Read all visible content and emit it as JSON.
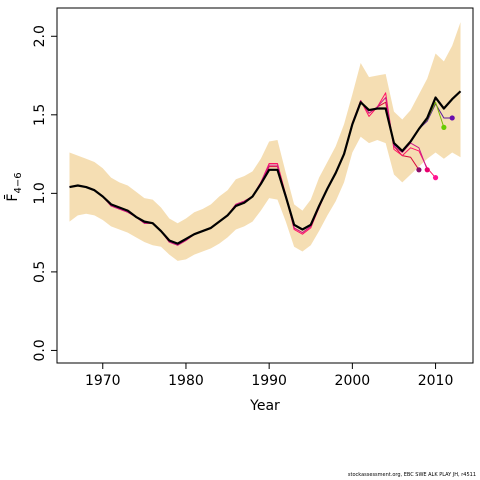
{
  "chart_data": {
    "type": "line",
    "xlabel": "Year",
    "ylabel": "F̄",
    "ylabel_subscript": "4−6",
    "xlim": [
      1964.5,
      2014.5
    ],
    "ylim": [
      -0.08,
      2.18
    ],
    "x_ticks": [
      1970,
      1980,
      1990,
      2000,
      2010
    ],
    "y_ticks": [
      "0.0",
      "0.5",
      "1.0",
      "1.5",
      "2.0"
    ],
    "band": {
      "color": "#f5deb3",
      "x": [
        1966,
        1967,
        1968,
        1969,
        1970,
        1971,
        1972,
        1973,
        1974,
        1975,
        1976,
        1977,
        1978,
        1979,
        1980,
        1981,
        1982,
        1983,
        1984,
        1985,
        1986,
        1987,
        1988,
        1989,
        1990,
        1991,
        1992,
        1993,
        1994,
        1995,
        1996,
        1997,
        1998,
        1999,
        2000,
        2001,
        2002,
        2003,
        2004,
        2005,
        2006,
        2007,
        2008,
        2009,
        2010,
        2011,
        2012,
        2013
      ],
      "lower": [
        0.82,
        0.86,
        0.87,
        0.86,
        0.83,
        0.79,
        0.77,
        0.75,
        0.72,
        0.69,
        0.67,
        0.66,
        0.61,
        0.57,
        0.58,
        0.61,
        0.63,
        0.65,
        0.68,
        0.72,
        0.77,
        0.79,
        0.82,
        0.89,
        0.97,
        0.96,
        0.82,
        0.66,
        0.63,
        0.67,
        0.76,
        0.86,
        0.95,
        1.07,
        1.26,
        1.36,
        1.32,
        1.34,
        1.32,
        1.12,
        1.07,
        1.12,
        1.17,
        1.22,
        1.26,
        1.22,
        1.26,
        1.23
      ],
      "upper": [
        1.26,
        1.24,
        1.22,
        1.2,
        1.16,
        1.1,
        1.07,
        1.05,
        1.01,
        0.97,
        0.96,
        0.91,
        0.84,
        0.81,
        0.84,
        0.88,
        0.9,
        0.93,
        0.98,
        1.02,
        1.09,
        1.11,
        1.14,
        1.22,
        1.33,
        1.34,
        1.13,
        0.93,
        0.89,
        0.96,
        1.1,
        1.2,
        1.3,
        1.44,
        1.63,
        1.83,
        1.74,
        1.75,
        1.76,
        1.52,
        1.47,
        1.53,
        1.63,
        1.73,
        1.89,
        1.84,
        1.94,
        2.09
      ]
    },
    "series": [
      {
        "color": "#000000",
        "x": [
          1966,
          1967,
          1968,
          1969,
          1970,
          1971,
          1972,
          1973,
          1974,
          1975,
          1976,
          1977,
          1978,
          1979,
          1980,
          1981,
          1982,
          1983,
          1984,
          1985,
          1986,
          1987,
          1988,
          1989,
          1990,
          1991,
          1992,
          1993,
          1994,
          1995,
          1996,
          1997,
          1998,
          1999,
          2000,
          2001,
          2002,
          2003,
          2004,
          2005,
          2006,
          2007,
          2008,
          2009,
          2010,
          2011,
          2012,
          2013
        ],
        "y": [
          1.04,
          1.05,
          1.04,
          1.02,
          0.98,
          0.93,
          0.91,
          0.89,
          0.85,
          0.82,
          0.81,
          0.76,
          0.7,
          0.68,
          0.71,
          0.74,
          0.76,
          0.78,
          0.82,
          0.86,
          0.92,
          0.94,
          0.98,
          1.06,
          1.15,
          1.15,
          0.98,
          0.8,
          0.77,
          0.8,
          0.92,
          1.03,
          1.13,
          1.25,
          1.44,
          1.58,
          1.53,
          1.54,
          1.54,
          1.32,
          1.27,
          1.33,
          1.41,
          1.48,
          1.61,
          1.54,
          1.6,
          1.65
        ]
      },
      {
        "color": "#d80a3c",
        "x": [
          1966,
          1967,
          1968,
          1969,
          1970,
          1971,
          1972,
          1973,
          1974,
          1975,
          1976,
          1977,
          1978,
          1979,
          1980,
          1981,
          1982,
          1983,
          1984,
          1985,
          1986,
          1987,
          1988,
          1989,
          1990,
          1991,
          1992,
          1993,
          1994,
          1995,
          1996,
          1997,
          1998,
          1999,
          2000,
          2001,
          2002,
          2003,
          2004,
          2005,
          2006,
          2007,
          2008
        ],
        "y": [
          1.04,
          1.05,
          1.04,
          1.02,
          0.98,
          0.92,
          0.9,
          0.88,
          0.85,
          0.81,
          0.81,
          0.76,
          0.69,
          0.67,
          0.7,
          0.74,
          0.76,
          0.78,
          0.82,
          0.86,
          0.93,
          0.95,
          0.98,
          1.07,
          1.17,
          1.17,
          0.98,
          0.78,
          0.75,
          0.79,
          0.91,
          1.03,
          1.13,
          1.25,
          1.44,
          1.59,
          1.51,
          1.55,
          1.58,
          1.3,
          1.24,
          1.23,
          1.15
        ]
      },
      {
        "color": "#ff1466",
        "x": [
          1966,
          1967,
          1968,
          1969,
          1970,
          1971,
          1972,
          1973,
          1974,
          1975,
          1976,
          1977,
          1978,
          1979,
          1980,
          1981,
          1982,
          1983,
          1984,
          1985,
          1986,
          1987,
          1988,
          1989,
          1990,
          1991,
          1992,
          1993,
          1994,
          1995,
          1996,
          1997,
          1998,
          1999,
          2000,
          2001,
          2002,
          2003,
          2004,
          2005,
          2006,
          2007,
          2008,
          2009,
          2010
        ],
        "y": [
          1.04,
          1.05,
          1.04,
          1.02,
          0.98,
          0.92,
          0.9,
          0.88,
          0.85,
          0.81,
          0.81,
          0.76,
          0.69,
          0.67,
          0.7,
          0.74,
          0.76,
          0.78,
          0.82,
          0.86,
          0.93,
          0.95,
          0.98,
          1.07,
          1.19,
          1.19,
          0.99,
          0.77,
          0.74,
          0.78,
          0.91,
          1.03,
          1.13,
          1.25,
          1.45,
          1.59,
          1.49,
          1.55,
          1.64,
          1.28,
          1.24,
          1.29,
          1.27,
          1.16,
          1.1
        ]
      },
      {
        "color": "#cc1a8a",
        "x": [
          1966,
          1967,
          1968,
          1969,
          1970,
          1971,
          1972,
          1973,
          1974,
          1975,
          1976,
          1977,
          1978,
          1979,
          1980,
          1981,
          1982,
          1983,
          1984,
          1985,
          1986,
          1987,
          1988,
          1989,
          1990,
          1991,
          1992,
          1993,
          1994,
          1995,
          1996,
          1997,
          1998,
          1999,
          2000,
          2001,
          2002,
          2003,
          2004,
          2005,
          2006,
          2007,
          2008,
          2009
        ],
        "y": [
          1.04,
          1.05,
          1.04,
          1.02,
          0.98,
          0.92,
          0.9,
          0.88,
          0.85,
          0.81,
          0.81,
          0.76,
          0.69,
          0.67,
          0.7,
          0.74,
          0.76,
          0.78,
          0.82,
          0.86,
          0.93,
          0.95,
          0.98,
          1.07,
          1.18,
          1.18,
          0.98,
          0.78,
          0.75,
          0.79,
          0.91,
          1.03,
          1.13,
          1.25,
          1.44,
          1.59,
          1.51,
          1.55,
          1.61,
          1.3,
          1.26,
          1.32,
          1.29,
          1.15
        ]
      },
      {
        "color": "#5a1a9a",
        "x": [
          2005,
          2006,
          2007,
          2008,
          2009,
          2010,
          2011,
          2012
        ],
        "y": [
          1.31,
          1.27,
          1.33,
          1.41,
          1.46,
          1.57,
          1.48,
          1.48
        ]
      },
      {
        "color": "#7ab800",
        "x": [
          2005,
          2006,
          2007,
          2008,
          2009,
          2010,
          2011
        ],
        "y": [
          1.32,
          1.27,
          1.33,
          1.41,
          1.47,
          1.58,
          1.42
        ]
      }
    ],
    "endpoints": [
      {
        "x": 2008,
        "y": 1.15,
        "color": "#8a0d6a"
      },
      {
        "x": 2009,
        "y": 1.15,
        "color": "#e8006e"
      },
      {
        "x": 2010,
        "y": 1.1,
        "color": "#ff1493"
      },
      {
        "x": 2011,
        "y": 1.42,
        "color": "#66cc00"
      },
      {
        "x": 2012,
        "y": 1.48,
        "color": "#6a0dad"
      }
    ]
  },
  "credit": "stockassessment.org, EBC SWE ALK PLAY JH, r4511"
}
